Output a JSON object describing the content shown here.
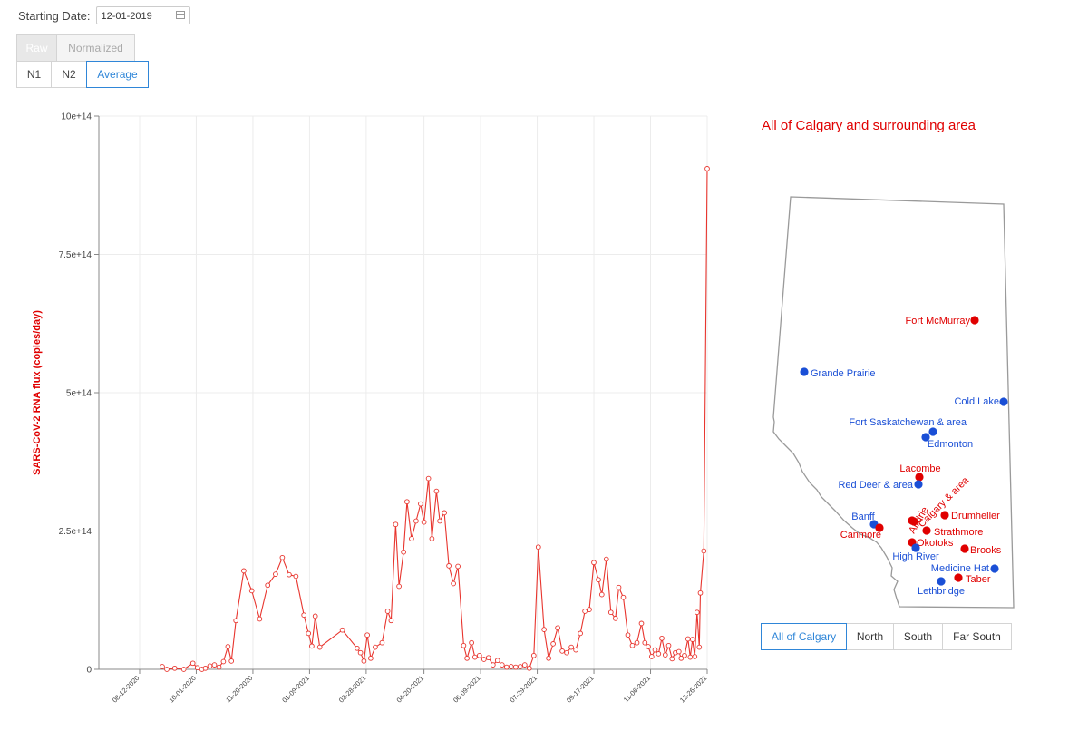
{
  "controls": {
    "starting_date_label": "Starting Date:",
    "starting_date_value": "12-01-2019",
    "mode_buttons": [
      {
        "label": "Raw",
        "state": "selected"
      },
      {
        "label": "Normalized",
        "state": "disabled"
      }
    ],
    "target_buttons": [
      {
        "label": "N1",
        "state": "normal"
      },
      {
        "label": "N2",
        "state": "normal"
      },
      {
        "label": "Average",
        "state": "active"
      }
    ]
  },
  "map": {
    "title": "All of Calgary and surrounding area",
    "region_buttons": [
      {
        "label": "All of Calgary",
        "state": "active"
      },
      {
        "label": "North",
        "state": "normal"
      },
      {
        "label": "South",
        "state": "normal"
      },
      {
        "label": "Far South",
        "state": "normal"
      }
    ],
    "cities": [
      {
        "name": "Fort McMurray",
        "color": "red"
      },
      {
        "name": "Grande Prairie",
        "color": "blue"
      },
      {
        "name": "Cold Lake",
        "color": "blue"
      },
      {
        "name": "Fort Saskatchewan & area",
        "color": "blue"
      },
      {
        "name": "Edmonton",
        "color": "blue"
      },
      {
        "name": "Lacombe",
        "color": "red"
      },
      {
        "name": "Red Deer & area",
        "color": "blue"
      },
      {
        "name": "Calgary & area",
        "color": "red"
      },
      {
        "name": "Airdrie",
        "color": "red"
      },
      {
        "name": "Drumheller",
        "color": "red"
      },
      {
        "name": "Banff",
        "color": "blue"
      },
      {
        "name": "Canmore",
        "color": "red"
      },
      {
        "name": "Strathmore",
        "color": "red"
      },
      {
        "name": "Okotoks",
        "color": "red"
      },
      {
        "name": "High River",
        "color": "blue"
      },
      {
        "name": "Brooks",
        "color": "red"
      },
      {
        "name": "Medicine Hat",
        "color": "blue"
      },
      {
        "name": "Taber",
        "color": "red"
      },
      {
        "name": "Lethbridge",
        "color": "blue"
      }
    ],
    "colors": {
      "red": "#e00000",
      "blue": "#1a4fd6"
    }
  },
  "chart_data": {
    "type": "line",
    "ylabel": "SARS-CoV-2 RNA flux (copies/day)",
    "ylim": [
      0,
      1000000000000000.0
    ],
    "yticks": [
      0,
      250000000000000.0,
      500000000000000.0,
      750000000000000.0,
      1000000000000000.0
    ],
    "ytick_labels": [
      "0",
      "2.5e+14",
      "5e+14",
      "7.5e+14",
      "10e+14"
    ],
    "xlim": [
      "2020-07-07",
      "2021-12-26"
    ],
    "xticks": [
      "2020-08-12",
      "2020-10-01",
      "2020-11-20",
      "2021-01-09",
      "2021-02-28",
      "2021-04-20",
      "2021-06-09",
      "2021-07-29",
      "2021-09-17",
      "2021-11-06",
      "2021-12-26"
    ],
    "xtick_labels": [
      "08-12-2020",
      "10-01-2020",
      "11-20-2020",
      "01-09-2021",
      "02-28-2021",
      "04-20-2021",
      "06-09-2021",
      "07-29-2021",
      "09-17-2021",
      "11-06-2021",
      "12-26-2021"
    ],
    "grid": true,
    "line_color": "#e8352e",
    "series": [
      {
        "name": "",
        "points": [
          [
            "2020-09-01",
            5000000000000.0
          ],
          [
            "2020-09-05",
            0
          ],
          [
            "2020-09-12",
            2000000000000.0
          ],
          [
            "2020-09-20",
            0
          ],
          [
            "2020-09-28",
            11000000000000.0
          ],
          [
            "2020-10-02",
            3000000000000.0
          ],
          [
            "2020-10-06",
            0
          ],
          [
            "2020-10-09",
            2000000000000.0
          ],
          [
            "2020-10-13",
            6000000000000.0
          ],
          [
            "2020-10-17",
            8000000000000.0
          ],
          [
            "2020-10-21",
            4000000000000.0
          ],
          [
            "2020-10-25",
            14000000000000.0
          ],
          [
            "2020-10-29",
            41000000000000.0
          ],
          [
            "2020-11-01",
            15000000000000.0
          ],
          [
            "2020-11-05",
            88000000000000.0
          ],
          [
            "2020-11-12",
            178000000000000.0
          ],
          [
            "2020-11-19",
            142000000000000.0
          ],
          [
            "2020-11-26",
            91000000000000.0
          ],
          [
            "2020-12-03",
            152000000000000.0
          ],
          [
            "2020-12-10",
            172000000000000.0
          ],
          [
            "2020-12-16",
            202000000000000.0
          ],
          [
            "2020-12-22",
            171000000000000.0
          ],
          [
            "2020-12-28",
            168000000000000.0
          ],
          [
            "2021-01-04",
            98000000000000.0
          ],
          [
            "2021-01-08",
            65000000000000.0
          ],
          [
            "2021-01-11",
            42000000000000.0
          ],
          [
            "2021-01-14",
            96000000000000.0
          ],
          [
            "2021-01-18",
            40000000000000.0
          ],
          [
            "2021-02-07",
            71000000000000.0
          ],
          [
            "2021-02-20",
            38000000000000.0
          ],
          [
            "2021-02-23",
            30000000000000.0
          ],
          [
            "2021-02-26",
            15000000000000.0
          ],
          [
            "2021-03-01",
            62000000000000.0
          ],
          [
            "2021-03-04",
            20000000000000.0
          ],
          [
            "2021-03-08",
            40000000000000.0
          ],
          [
            "2021-03-14",
            48000000000000.0
          ],
          [
            "2021-03-19",
            105000000000000.0
          ],
          [
            "2021-03-22",
            88000000000000.0
          ],
          [
            "2021-03-26",
            262000000000000.0
          ],
          [
            "2021-03-29",
            150000000000000.0
          ],
          [
            "2021-04-02",
            212000000000000.0
          ],
          [
            "2021-04-05",
            303000000000000.0
          ],
          [
            "2021-04-09",
            236000000000000.0
          ],
          [
            "2021-04-13",
            268000000000000.0
          ],
          [
            "2021-04-17",
            299000000000000.0
          ],
          [
            "2021-04-20",
            266000000000000.0
          ],
          [
            "2021-04-24",
            345000000000000.0
          ],
          [
            "2021-04-27",
            236000000000000.0
          ],
          [
            "2021-05-01",
            322000000000000.0
          ],
          [
            "2021-05-04",
            268000000000000.0
          ],
          [
            "2021-05-08",
            283000000000000.0
          ],
          [
            "2021-05-12",
            187000000000000.0
          ],
          [
            "2021-05-16",
            155000000000000.0
          ],
          [
            "2021-05-20",
            186000000000000.0
          ],
          [
            "2021-05-25",
            43000000000000.0
          ],
          [
            "2021-05-28",
            20000000000000.0
          ],
          [
            "2021-06-01",
            48000000000000.0
          ],
          [
            "2021-06-04",
            22000000000000.0
          ],
          [
            "2021-06-08",
            25000000000000.0
          ],
          [
            "2021-06-12",
            18000000000000.0
          ],
          [
            "2021-06-16",
            21000000000000.0
          ],
          [
            "2021-06-20",
            8000000000000.0
          ],
          [
            "2021-06-24",
            16000000000000.0
          ],
          [
            "2021-06-28",
            8000000000000.0
          ],
          [
            "2021-07-02",
            4000000000000.0
          ],
          [
            "2021-07-06",
            5000000000000.0
          ],
          [
            "2021-07-10",
            4000000000000.0
          ],
          [
            "2021-07-14",
            5000000000000.0
          ],
          [
            "2021-07-18",
            8000000000000.0
          ],
          [
            "2021-07-22",
            2000000000000.0
          ],
          [
            "2021-07-26",
            25000000000000.0
          ],
          [
            "2021-07-30",
            221000000000000.0
          ],
          [
            "2021-08-04",
            72000000000000.0
          ],
          [
            "2021-08-08",
            20000000000000.0
          ],
          [
            "2021-08-12",
            46000000000000.0
          ],
          [
            "2021-08-16",
            75000000000000.0
          ],
          [
            "2021-08-20",
            33000000000000.0
          ],
          [
            "2021-08-24",
            30000000000000.0
          ],
          [
            "2021-08-28",
            40000000000000.0
          ],
          [
            "2021-09-01",
            35000000000000.0
          ],
          [
            "2021-09-05",
            65000000000000.0
          ],
          [
            "2021-09-09",
            105000000000000.0
          ],
          [
            "2021-09-13",
            108000000000000.0
          ],
          [
            "2021-09-17",
            193000000000000.0
          ],
          [
            "2021-09-21",
            162000000000000.0
          ],
          [
            "2021-09-24",
            135000000000000.0
          ],
          [
            "2021-09-28",
            199000000000000.0
          ],
          [
            "2021-10-02",
            103000000000000.0
          ],
          [
            "2021-10-06",
            92000000000000.0
          ],
          [
            "2021-10-09",
            148000000000000.0
          ],
          [
            "2021-10-13",
            130000000000000.0
          ],
          [
            "2021-10-17",
            62000000000000.0
          ],
          [
            "2021-10-21",
            43000000000000.0
          ],
          [
            "2021-10-25",
            48000000000000.0
          ],
          [
            "2021-10-29",
            83000000000000.0
          ],
          [
            "2021-11-01",
            48000000000000.0
          ],
          [
            "2021-11-04",
            41000000000000.0
          ],
          [
            "2021-11-07",
            23000000000000.0
          ],
          [
            "2021-11-10",
            35000000000000.0
          ],
          [
            "2021-11-13",
            28000000000000.0
          ],
          [
            "2021-11-16",
            56000000000000.0
          ],
          [
            "2021-11-19",
            26000000000000.0
          ],
          [
            "2021-11-22",
            43000000000000.0
          ],
          [
            "2021-11-25",
            19000000000000.0
          ],
          [
            "2021-11-28",
            30000000000000.0
          ],
          [
            "2021-12-01",
            32000000000000.0
          ],
          [
            "2021-12-03",
            20000000000000.0
          ],
          [
            "2021-12-06",
            25000000000000.0
          ],
          [
            "2021-12-09",
            55000000000000.0
          ],
          [
            "2021-12-11",
            22000000000000.0
          ],
          [
            "2021-12-13",
            54000000000000.0
          ],
          [
            "2021-12-15",
            23000000000000.0
          ],
          [
            "2021-12-17",
            103000000000000.0
          ],
          [
            "2021-12-19",
            40000000000000.0
          ],
          [
            "2021-12-20",
            138000000000000.0
          ],
          [
            "2021-12-23",
            214000000000000.0
          ],
          [
            "2021-12-26",
            905000000000000.0
          ]
        ]
      }
    ]
  }
}
